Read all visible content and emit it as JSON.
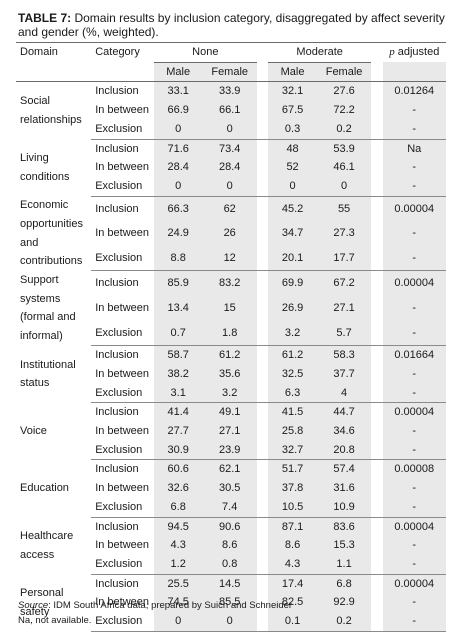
{
  "caption": {
    "label": "TABLE 7:",
    "text": " Domain results by inclusion category, disaggregated by affect severity and gender (%, weighted)."
  },
  "header": {
    "domain": "Domain",
    "category": "Category",
    "none": "None",
    "moderate": "Moderate",
    "p_label": "p",
    "p_suffix": " adjusted",
    "male": "Male",
    "female": "Female"
  },
  "groups": [
    {
      "domain": "Social relationships",
      "p": "0.01264",
      "rows": [
        {
          "cat": "Inclusion",
          "v": [
            "33.1",
            "33.9",
            "32.1",
            "27.6"
          ]
        },
        {
          "cat": "In between",
          "v": [
            "66.9",
            "66.1",
            "67.5",
            "72.2"
          ],
          "p": "-"
        },
        {
          "cat": "Exclusion",
          "v": [
            "0",
            "0",
            "0.3",
            "0.2"
          ],
          "p": "-"
        }
      ]
    },
    {
      "domain": "Living conditions",
      "p": "Na",
      "rows": [
        {
          "cat": "Inclusion",
          "v": [
            "71.6",
            "73.4",
            "48",
            "53.9"
          ]
        },
        {
          "cat": "In between",
          "v": [
            "28.4",
            "28.4",
            "52",
            "46.1"
          ],
          "p": "-"
        },
        {
          "cat": "Exclusion",
          "v": [
            "0",
            "0",
            "0",
            "0"
          ],
          "p": "-"
        }
      ]
    },
    {
      "domain": "Economic opportunities and contributions",
      "p": "0.00004",
      "rows": [
        {
          "cat": "Inclusion",
          "v": [
            "66.3",
            "62",
            "45.2",
            "55"
          ]
        },
        {
          "cat": "In between",
          "v": [
            "24.9",
            "26",
            "34.7",
            "27.3"
          ],
          "p": "-"
        },
        {
          "cat": "Exclusion",
          "v": [
            "8.8",
            "12",
            "20.1",
            "17.7"
          ],
          "p": "-"
        }
      ]
    },
    {
      "domain": "Support systems (formal and informal)",
      "p": "0.00004",
      "rows": [
        {
          "cat": "Inclusion",
          "v": [
            "85.9",
            "83.2",
            "69.9",
            "67.2"
          ]
        },
        {
          "cat": "In between",
          "v": [
            "13.4",
            "15",
            "26.9",
            "27.1"
          ],
          "p": "-"
        },
        {
          "cat": "Exclusion",
          "v": [
            "0.7",
            "1.8",
            "3.2",
            "5.7"
          ],
          "p": "-"
        }
      ]
    },
    {
      "domain": "Institutional status",
      "p": "0.01664",
      "rows": [
        {
          "cat": "Inclusion",
          "v": [
            "58.7",
            "61.2",
            "61.2",
            "58.3"
          ]
        },
        {
          "cat": "In between",
          "v": [
            "38.2",
            "35.6",
            "32.5",
            "37.7"
          ],
          "p": "-"
        },
        {
          "cat": "Exclusion",
          "v": [
            "3.1",
            "3.2",
            "6.3",
            "4"
          ],
          "p": "-"
        }
      ]
    },
    {
      "domain": "Voice",
      "p": "0.00004",
      "rows": [
        {
          "cat": "Inclusion",
          "v": [
            "41.4",
            "49.1",
            "41.5",
            "44.7"
          ]
        },
        {
          "cat": "In between",
          "v": [
            "27.7",
            "27.1",
            "25.8",
            "34.6"
          ],
          "p": "-"
        },
        {
          "cat": "Exclusion",
          "v": [
            "30.9",
            "23.9",
            "32.7",
            "20.8"
          ],
          "p": "-"
        }
      ]
    },
    {
      "domain": "Education",
      "p": "0.00008",
      "rows": [
        {
          "cat": "Inclusion",
          "v": [
            "60.6",
            "62.1",
            "51.7",
            "57.4"
          ]
        },
        {
          "cat": "In between",
          "v": [
            "32.6",
            "30.5",
            "37.8",
            "31.6"
          ],
          "p": "-"
        },
        {
          "cat": "Exclusion",
          "v": [
            "6.8",
            "7.4",
            "10.5",
            "10.9"
          ],
          "p": "-"
        }
      ]
    },
    {
      "domain": "Healthcare access",
      "p": "0.00004",
      "rows": [
        {
          "cat": "Inclusion",
          "v": [
            "94.5",
            "90.6",
            "87.1",
            "83.6"
          ]
        },
        {
          "cat": "In between",
          "v": [
            "4.3",
            "8.6",
            "8.6",
            "15.3"
          ],
          "p": "-"
        },
        {
          "cat": "Exclusion",
          "v": [
            "1.2",
            "0.8",
            "4.3",
            "1.1"
          ],
          "p": "-"
        }
      ]
    },
    {
      "domain": "Personal safety",
      "p": "0.00004",
      "rows": [
        {
          "cat": "Inclusion",
          "v": [
            "25.5",
            "14.5",
            "17.4",
            "6.8"
          ]
        },
        {
          "cat": "In between",
          "v": [
            "74.5",
            "85.5",
            "82.5",
            "92.9"
          ],
          "p": "-"
        },
        {
          "cat": "Exclusion",
          "v": [
            "0",
            "0",
            "0.1",
            "0.2"
          ],
          "p": "-"
        }
      ]
    }
  ],
  "footer": {
    "source_label": "Source",
    "source_text": ": IDM South Africa data, prepared by Suich and Schneider",
    "na_note": "Na, not available."
  }
}
